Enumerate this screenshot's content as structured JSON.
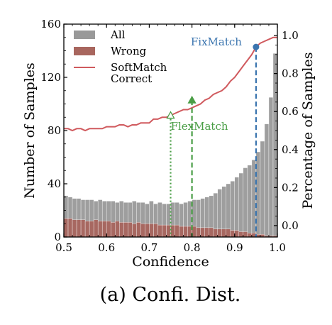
{
  "chart_data": {
    "type": "bar",
    "caption": "(a) Confi. Dist.",
    "xlabel": "Confidence",
    "ylabel_left": "Number of Samples",
    "ylabel_right": "Percentage of Samples",
    "xlim": [
      0.5,
      1.0
    ],
    "ylim_left": [
      0,
      160
    ],
    "ylim_right": [
      -0.06,
      1.06
    ],
    "x_ticks": [
      "0.5",
      "0.6",
      "0.7",
      "0.8",
      "0.9",
      "1.0"
    ],
    "y_left_ticks": [
      "0",
      "40",
      "80",
      "120",
      "160"
    ],
    "y_right_ticks": [
      "0.0",
      "0.2",
      "0.4",
      "0.6",
      "0.8",
      "1.0"
    ],
    "grid": false,
    "legend_position": "top-left",
    "bin_width": 0.01,
    "bin_start": 0.5,
    "series": [
      {
        "name": "All",
        "color": "#999999",
        "axis": "left",
        "values": [
          31,
          30,
          29,
          29,
          28,
          28,
          28,
          27,
          28,
          27,
          27,
          27,
          26,
          27,
          26,
          26,
          27,
          26,
          26,
          25,
          27,
          25,
          26,
          25,
          25,
          26,
          26,
          25,
          26,
          27,
          28,
          28,
          29,
          30,
          31,
          33,
          36,
          38,
          40,
          42,
          45,
          48,
          52,
          54,
          58,
          64,
          72,
          85,
          105,
          138
        ]
      },
      {
        "name": "Wrong",
        "color": "#a8665e",
        "axis": "left",
        "values": [
          14,
          14,
          13,
          13,
          13,
          12,
          12,
          13,
          12,
          12,
          12,
          11,
          12,
          11,
          11,
          11,
          10,
          11,
          10,
          10,
          10,
          10,
          9,
          9,
          9,
          9,
          9,
          8,
          8,
          8,
          8,
          7,
          7,
          7,
          7,
          6,
          6,
          6,
          6,
          5,
          5,
          4,
          4,
          3,
          3,
          2,
          2,
          1,
          1,
          1
        ]
      },
      {
        "name": "SoftMatch Correct",
        "color": "#d05a5e",
        "axis": "right",
        "x": [
          0.5,
          0.51,
          0.52,
          0.53,
          0.54,
          0.55,
          0.56,
          0.57,
          0.58,
          0.59,
          0.6,
          0.61,
          0.62,
          0.63,
          0.64,
          0.65,
          0.66,
          0.67,
          0.68,
          0.69,
          0.7,
          0.71,
          0.72,
          0.73,
          0.74,
          0.75,
          0.76,
          0.77,
          0.78,
          0.79,
          0.8,
          0.81,
          0.82,
          0.83,
          0.84,
          0.85,
          0.86,
          0.87,
          0.88,
          0.89,
          0.9,
          0.91,
          0.92,
          0.93,
          0.94,
          0.95,
          0.96,
          0.97,
          0.98,
          0.99,
          1.0
        ],
        "values": [
          0.51,
          0.51,
          0.5,
          0.51,
          0.51,
          0.5,
          0.51,
          0.51,
          0.51,
          0.51,
          0.52,
          0.52,
          0.52,
          0.53,
          0.53,
          0.52,
          0.53,
          0.53,
          0.54,
          0.54,
          0.54,
          0.56,
          0.56,
          0.57,
          0.57,
          0.58,
          0.59,
          0.6,
          0.61,
          0.61,
          0.62,
          0.63,
          0.64,
          0.66,
          0.67,
          0.69,
          0.7,
          0.71,
          0.73,
          0.76,
          0.78,
          0.81,
          0.84,
          0.87,
          0.9,
          0.94,
          0.96,
          0.97,
          0.98,
          0.99,
          0.99
        ]
      }
    ],
    "markers": [
      {
        "name": "FixMatch",
        "x": 0.95,
        "y_right": 0.94,
        "color": "#3b75af",
        "shape": "circle",
        "line": "dashed",
        "label_position": "left"
      },
      {
        "name": "FlexMatch",
        "x": 0.8,
        "y_right": 0.66,
        "color": "#4a9e46",
        "shape": "filled-triangle",
        "line": "dashed",
        "label_position": "below"
      },
      {
        "name": "",
        "x": 0.75,
        "y_right": 0.58,
        "color": "#4a9e46",
        "shape": "hollow-triangle",
        "line": "dotted",
        "label_position": ""
      }
    ],
    "legend": [
      {
        "label": "All",
        "kind": "patch",
        "color": "#999999"
      },
      {
        "label": "Wrong",
        "kind": "patch",
        "color": "#a8665e"
      },
      {
        "label_lines": [
          "SoftMatch",
          "Correct"
        ],
        "kind": "line",
        "color": "#d05a5e"
      }
    ]
  }
}
